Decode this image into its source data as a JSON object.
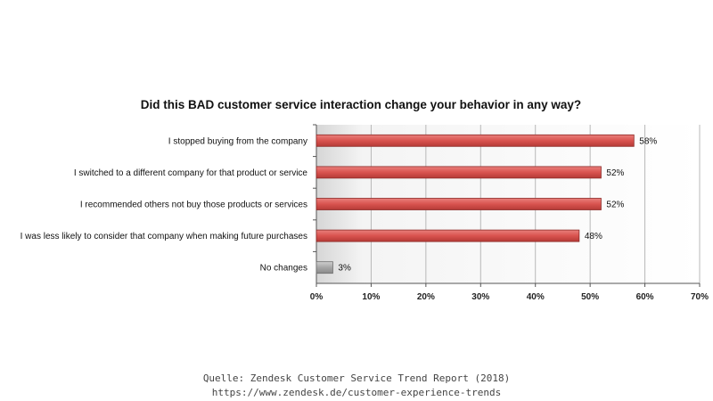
{
  "chart_data": {
    "type": "bar",
    "orientation": "horizontal",
    "title": "Did this BAD customer service interaction change your behavior in any way?",
    "categories": [
      "I stopped buying from the company",
      "I switched to a different company for that product or service",
      "I recommended others not buy those products or services",
      "I was less likely to consider that company when making future purchases",
      "No changes"
    ],
    "values": [
      58,
      52,
      52,
      48,
      3
    ],
    "value_labels": [
      "58%",
      "52%",
      "52%",
      "48%",
      "3%"
    ],
    "bar_colors": [
      "#d9534f",
      "#d9534f",
      "#d9534f",
      "#d9534f",
      "#a6a6a6"
    ],
    "xlim": [
      0,
      70
    ],
    "xticks": [
      0,
      10,
      20,
      30,
      40,
      50,
      60,
      70
    ],
    "xtick_labels": [
      "0%",
      "10%",
      "20%",
      "30%",
      "40%",
      "50%",
      "60%",
      "70%"
    ],
    "grid": true,
    "xlabel": "",
    "ylabel": ""
  },
  "source": {
    "line1": "Quelle: Zendesk Customer Service Trend Report (2018)",
    "line2": "https://www.zendesk.de/customer-experience-trends"
  }
}
